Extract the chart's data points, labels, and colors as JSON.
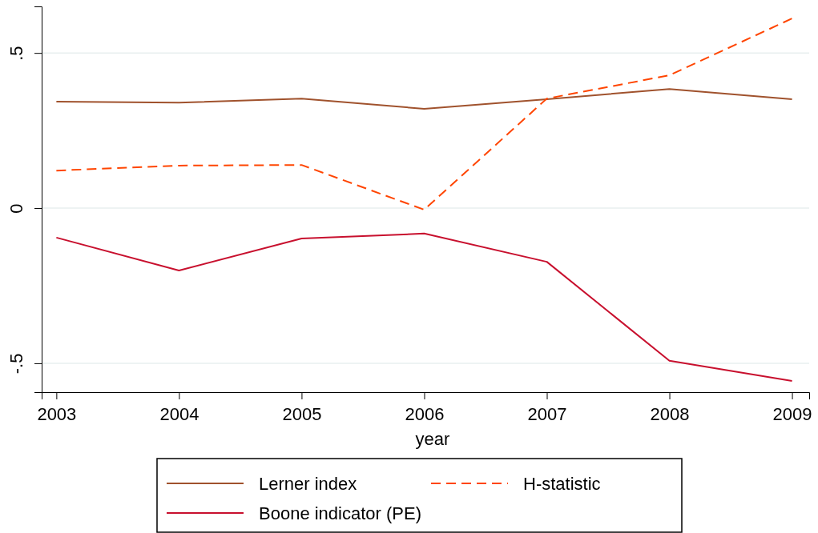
{
  "chart_data": {
    "type": "line",
    "xlabel": "year",
    "x": [
      2003,
      2004,
      2005,
      2006,
      2007,
      2008,
      2009
    ],
    "xlim": [
      2002.88,
      2009.14
    ],
    "xticks": [
      2003,
      2004,
      2005,
      2006,
      2007,
      2008,
      2009
    ],
    "ylim": [
      -0.593,
      0.65
    ],
    "yticks": [
      {
        "value": -0.5,
        "label": "-.5"
      },
      0,
      {
        "value": 0.5,
        "label": ".5"
      }
    ],
    "grid": "y",
    "legend": "bottom",
    "marker": "none",
    "series": [
      {
        "name": "Lerner index",
        "color": "#a0522d",
        "line_style": "solid",
        "values": [
          0.343,
          0.34,
          0.353,
          0.32,
          0.351,
          0.384,
          0.351
        ]
      },
      {
        "name": "H-statistic",
        "color": "#ff4500",
        "line_style": "dashed",
        "values": [
          0.121,
          0.137,
          0.139,
          -0.005,
          0.353,
          0.428,
          0.611
        ]
      },
      {
        "name": "Boone indicator (PE)",
        "color": "#c8102e",
        "line_style": "solid",
        "values": [
          -0.095,
          -0.201,
          -0.098,
          -0.082,
          -0.173,
          -0.492,
          -0.557
        ]
      }
    ]
  }
}
